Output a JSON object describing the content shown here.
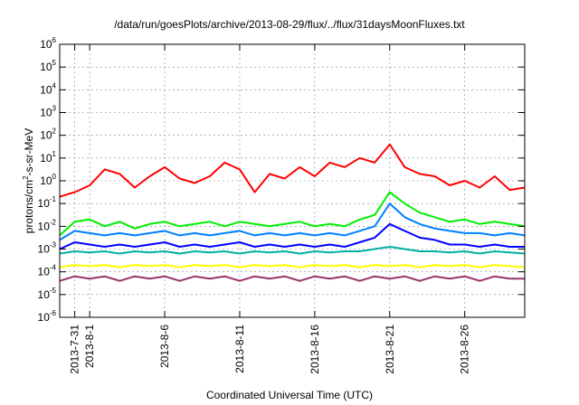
{
  "chart_data": {
    "type": "line",
    "title": "/data/run/goesPlots/archive/2013-08-29/flux/../flux/31daysMoonFluxes.txt",
    "xlabel": "Coordinated Universal Time (UTC)",
    "ylabel": {
      "prefix": "protons/cm",
      "sup": "2",
      "suffix": "-s-sr-MeV"
    },
    "y_scale": "log",
    "ylim_exponents": [
      -6,
      6
    ],
    "y_ticks": [
      {
        "base": "10",
        "exp": "6"
      },
      {
        "base": "10",
        "exp": "5"
      },
      {
        "base": "10",
        "exp": "4"
      },
      {
        "base": "10",
        "exp": "3"
      },
      {
        "base": "10",
        "exp": "2"
      },
      {
        "base": "10",
        "exp": "1"
      },
      {
        "base": "10",
        "exp": "0"
      },
      {
        "base": "10",
        "exp": "-1"
      },
      {
        "base": "10",
        "exp": "-2"
      },
      {
        "base": "10",
        "exp": "-3"
      },
      {
        "base": "10",
        "exp": "-4"
      },
      {
        "base": "10",
        "exp": "-5"
      },
      {
        "base": "10",
        "exp": "-6"
      }
    ],
    "x_range_days": [
      "2013-07-30",
      "2013-08-30"
    ],
    "x_tick_labels": [
      "2013-7-31",
      "2013-8-1",
      "2013-8-6",
      "2013-8-11",
      "2013-8-16",
      "2013-8-21",
      "2013-8-26"
    ],
    "x_tick_dates": [
      "2013-07-31",
      "2013-08-01",
      "2013-08-06",
      "2013-08-11",
      "2013-08-16",
      "2013-08-21",
      "2013-08-26"
    ],
    "grid": true,
    "legend": "none",
    "series": [
      {
        "color": "#ff0000",
        "x": [
          "2013-07-30",
          "2013-07-31",
          "2013-08-01",
          "2013-08-02",
          "2013-08-03",
          "2013-08-04",
          "2013-08-05",
          "2013-08-06",
          "2013-08-07",
          "2013-08-08",
          "2013-08-09",
          "2013-08-10",
          "2013-08-11",
          "2013-08-12",
          "2013-08-13",
          "2013-08-14",
          "2013-08-15",
          "2013-08-16",
          "2013-08-17",
          "2013-08-18",
          "2013-08-19",
          "2013-08-20",
          "2013-08-21",
          "2013-08-22",
          "2013-08-23",
          "2013-08-24",
          "2013-08-25",
          "2013-08-26",
          "2013-08-27",
          "2013-08-28",
          "2013-08-29",
          "2013-08-30"
        ],
        "log10_values": [
          -0.7,
          -0.5,
          -0.2,
          0.5,
          0.3,
          -0.3,
          0.2,
          0.6,
          0.1,
          -0.1,
          0.2,
          0.8,
          0.5,
          -0.5,
          0.3,
          0.1,
          0.6,
          0.2,
          0.8,
          0.6,
          1.0,
          0.8,
          1.6,
          0.6,
          0.3,
          0.2,
          -0.2,
          0.0,
          -0.3,
          0.2,
          -0.4,
          -0.3
        ]
      },
      {
        "color": "#00ee00",
        "x": [
          "2013-07-30",
          "2013-07-31",
          "2013-08-01",
          "2013-08-02",
          "2013-08-03",
          "2013-08-04",
          "2013-08-05",
          "2013-08-06",
          "2013-08-07",
          "2013-08-08",
          "2013-08-09",
          "2013-08-10",
          "2013-08-11",
          "2013-08-12",
          "2013-08-13",
          "2013-08-14",
          "2013-08-15",
          "2013-08-16",
          "2013-08-17",
          "2013-08-18",
          "2013-08-19",
          "2013-08-20",
          "2013-08-21",
          "2013-08-22",
          "2013-08-23",
          "2013-08-24",
          "2013-08-25",
          "2013-08-26",
          "2013-08-27",
          "2013-08-28",
          "2013-08-29",
          "2013-08-30"
        ],
        "log10_values": [
          -2.4,
          -1.8,
          -1.7,
          -2.0,
          -1.8,
          -2.1,
          -1.9,
          -1.8,
          -2.0,
          -1.9,
          -1.8,
          -2.0,
          -1.8,
          -1.9,
          -2.0,
          -1.9,
          -1.8,
          -2.0,
          -1.9,
          -2.0,
          -1.7,
          -1.5,
          -0.5,
          -1.0,
          -1.4,
          -1.6,
          -1.8,
          -1.7,
          -1.9,
          -1.8,
          -1.9,
          -2.0
        ]
      },
      {
        "color": "#0080ff",
        "x": [
          "2013-07-30",
          "2013-07-31",
          "2013-08-01",
          "2013-08-02",
          "2013-08-03",
          "2013-08-04",
          "2013-08-05",
          "2013-08-06",
          "2013-08-07",
          "2013-08-08",
          "2013-08-09",
          "2013-08-10",
          "2013-08-11",
          "2013-08-12",
          "2013-08-13",
          "2013-08-14",
          "2013-08-15",
          "2013-08-16",
          "2013-08-17",
          "2013-08-18",
          "2013-08-19",
          "2013-08-20",
          "2013-08-21",
          "2013-08-22",
          "2013-08-23",
          "2013-08-24",
          "2013-08-25",
          "2013-08-26",
          "2013-08-27",
          "2013-08-28",
          "2013-08-29",
          "2013-08-30"
        ],
        "log10_values": [
          -2.6,
          -2.2,
          -2.3,
          -2.4,
          -2.3,
          -2.4,
          -2.3,
          -2.2,
          -2.4,
          -2.3,
          -2.4,
          -2.3,
          -2.2,
          -2.4,
          -2.3,
          -2.4,
          -2.3,
          -2.4,
          -2.3,
          -2.4,
          -2.2,
          -2.0,
          -1.0,
          -1.6,
          -1.9,
          -2.1,
          -2.2,
          -2.3,
          -2.3,
          -2.4,
          -2.3,
          -2.4
        ]
      },
      {
        "color": "#0000ff",
        "x": [
          "2013-07-30",
          "2013-07-31",
          "2013-08-01",
          "2013-08-02",
          "2013-08-03",
          "2013-08-04",
          "2013-08-05",
          "2013-08-06",
          "2013-08-07",
          "2013-08-08",
          "2013-08-09",
          "2013-08-10",
          "2013-08-11",
          "2013-08-12",
          "2013-08-13",
          "2013-08-14",
          "2013-08-15",
          "2013-08-16",
          "2013-08-17",
          "2013-08-18",
          "2013-08-19",
          "2013-08-20",
          "2013-08-21",
          "2013-08-22",
          "2013-08-23",
          "2013-08-24",
          "2013-08-25",
          "2013-08-26",
          "2013-08-27",
          "2013-08-28",
          "2013-08-29",
          "2013-08-30"
        ],
        "log10_values": [
          -3.0,
          -2.7,
          -2.8,
          -2.9,
          -2.8,
          -2.9,
          -2.8,
          -2.7,
          -2.9,
          -2.8,
          -2.9,
          -2.8,
          -2.7,
          -2.9,
          -2.8,
          -2.9,
          -2.8,
          -2.9,
          -2.8,
          -2.9,
          -2.7,
          -2.5,
          -1.9,
          -2.2,
          -2.5,
          -2.6,
          -2.8,
          -2.8,
          -2.9,
          -2.8,
          -2.9,
          -2.9
        ]
      },
      {
        "color": "#00b0a0",
        "x": [
          "2013-07-30",
          "2013-07-31",
          "2013-08-01",
          "2013-08-02",
          "2013-08-03",
          "2013-08-04",
          "2013-08-05",
          "2013-08-06",
          "2013-08-07",
          "2013-08-08",
          "2013-08-09",
          "2013-08-10",
          "2013-08-11",
          "2013-08-12",
          "2013-08-13",
          "2013-08-14",
          "2013-08-15",
          "2013-08-16",
          "2013-08-17",
          "2013-08-18",
          "2013-08-19",
          "2013-08-20",
          "2013-08-21",
          "2013-08-22",
          "2013-08-23",
          "2013-08-24",
          "2013-08-25",
          "2013-08-26",
          "2013-08-27",
          "2013-08-28",
          "2013-08-29",
          "2013-08-30"
        ],
        "log10_values": [
          -3.2,
          -3.1,
          -3.15,
          -3.1,
          -3.2,
          -3.1,
          -3.15,
          -3.1,
          -3.2,
          -3.1,
          -3.15,
          -3.1,
          -3.2,
          -3.1,
          -3.15,
          -3.1,
          -3.2,
          -3.1,
          -3.15,
          -3.1,
          -3.1,
          -3.0,
          -2.9,
          -3.0,
          -3.1,
          -3.1,
          -3.15,
          -3.1,
          -3.2,
          -3.1,
          -3.15,
          -3.2
        ]
      },
      {
        "color": "#ffff00",
        "x": [
          "2013-07-30",
          "2013-07-31",
          "2013-08-01",
          "2013-08-02",
          "2013-08-03",
          "2013-08-04",
          "2013-08-05",
          "2013-08-06",
          "2013-08-07",
          "2013-08-08",
          "2013-08-09",
          "2013-08-10",
          "2013-08-11",
          "2013-08-12",
          "2013-08-13",
          "2013-08-14",
          "2013-08-15",
          "2013-08-16",
          "2013-08-17",
          "2013-08-18",
          "2013-08-19",
          "2013-08-20",
          "2013-08-21",
          "2013-08-22",
          "2013-08-23",
          "2013-08-24",
          "2013-08-25",
          "2013-08-26",
          "2013-08-27",
          "2013-08-28",
          "2013-08-29",
          "2013-08-30"
        ],
        "log10_values": [
          -3.8,
          -3.7,
          -3.75,
          -3.7,
          -3.8,
          -3.7,
          -3.75,
          -3.7,
          -3.8,
          -3.7,
          -3.75,
          -3.7,
          -3.8,
          -3.7,
          -3.75,
          -3.7,
          -3.8,
          -3.7,
          -3.75,
          -3.7,
          -3.8,
          -3.7,
          -3.75,
          -3.7,
          -3.8,
          -3.7,
          -3.75,
          -3.7,
          -3.8,
          -3.7,
          -3.75,
          -3.8
        ]
      },
      {
        "color": "#993366",
        "x": [
          "2013-07-30",
          "2013-07-31",
          "2013-08-01",
          "2013-08-02",
          "2013-08-03",
          "2013-08-04",
          "2013-08-05",
          "2013-08-06",
          "2013-08-07",
          "2013-08-08",
          "2013-08-09",
          "2013-08-10",
          "2013-08-11",
          "2013-08-12",
          "2013-08-13",
          "2013-08-14",
          "2013-08-15",
          "2013-08-16",
          "2013-08-17",
          "2013-08-18",
          "2013-08-19",
          "2013-08-20",
          "2013-08-21",
          "2013-08-22",
          "2013-08-23",
          "2013-08-24",
          "2013-08-25",
          "2013-08-26",
          "2013-08-27",
          "2013-08-28",
          "2013-08-29",
          "2013-08-30"
        ],
        "log10_values": [
          -4.4,
          -4.2,
          -4.3,
          -4.2,
          -4.4,
          -4.2,
          -4.3,
          -4.2,
          -4.4,
          -4.2,
          -4.3,
          -4.2,
          -4.4,
          -4.2,
          -4.3,
          -4.2,
          -4.4,
          -4.2,
          -4.3,
          -4.2,
          -4.4,
          -4.2,
          -4.3,
          -4.2,
          -4.4,
          -4.2,
          -4.3,
          -4.2,
          -4.4,
          -4.2,
          -4.3,
          -4.3
        ]
      }
    ]
  }
}
